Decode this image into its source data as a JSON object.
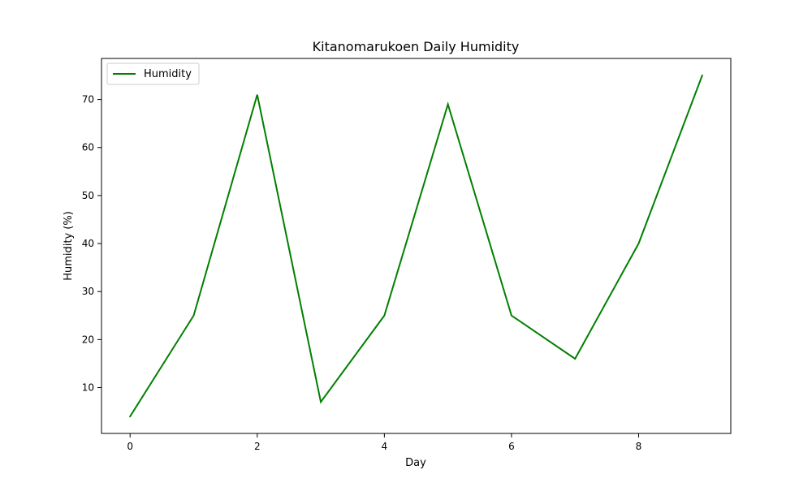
{
  "chart_data": {
    "type": "line",
    "title": "Kitanomarukoen Daily Humidity",
    "xlabel": "Day",
    "ylabel": "Humidity (%)",
    "x": [
      0,
      1,
      2,
      3,
      4,
      5,
      6,
      7,
      8,
      9
    ],
    "series": [
      {
        "name": "Humidity",
        "color": "#008000",
        "values": [
          4,
          25,
          71,
          7,
          25,
          69,
          25,
          16,
          40,
          75
        ]
      }
    ],
    "xlim": [
      -0.45,
      9.45
    ],
    "ylim": [
      0.45,
      78.55
    ],
    "xticks": [
      0,
      2,
      4,
      6,
      8
    ],
    "yticks": [
      10,
      20,
      30,
      40,
      50,
      60,
      70
    ],
    "grid": false,
    "legend_position": "top-left"
  }
}
